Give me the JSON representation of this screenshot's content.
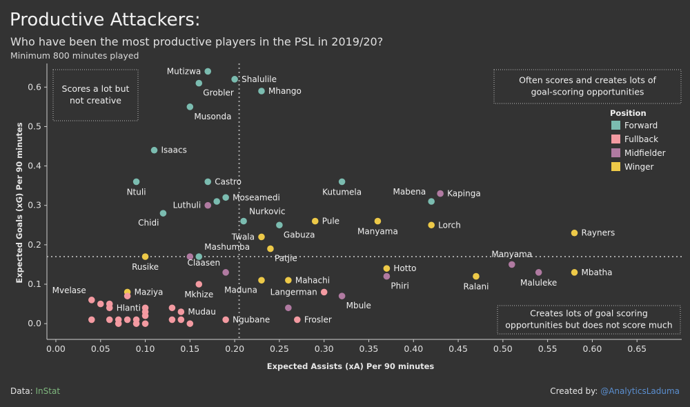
{
  "header": {
    "title": "Productive Attackers:",
    "subtitle": "Who have been the most productive players in the PSL in 2019/20?",
    "note": "Minimum 800 minutes played"
  },
  "footer": {
    "data_prefix": "Data: ",
    "data_source": "InStat",
    "credit_prefix": "Created by: ",
    "credit_handle": "@AnalyticsLaduma"
  },
  "chart_data": {
    "type": "scatter",
    "xlabel": "Expected Assists (xA) Per 90 minutes",
    "ylabel": "Expected Goals (xG) Per 90 minutes",
    "xlim": [
      -0.01,
      0.7
    ],
    "ylim": [
      -0.04,
      0.66
    ],
    "xticks": [
      0.0,
      0.05,
      0.1,
      0.15,
      0.2,
      0.25,
      0.3,
      0.35,
      0.4,
      0.45,
      0.5,
      0.55,
      0.6,
      0.65
    ],
    "yticks": [
      0.0,
      0.1,
      0.2,
      0.3,
      0.4,
      0.5,
      0.6
    ],
    "xtick_labels": [
      "0.00",
      "0.05",
      "0.10",
      "0.15",
      "0.20",
      "0.25",
      "0.30",
      "0.35",
      "0.40",
      "0.45",
      "0.50",
      "0.55",
      "0.60",
      "0.65"
    ],
    "ytick_labels": [
      "0.0",
      "0.1",
      "0.2",
      "0.3",
      "0.4",
      "0.5",
      "0.6"
    ],
    "reference_lines": {
      "x": 0.205,
      "y": 0.17
    },
    "legend": {
      "title": "Position",
      "placement": "top-right",
      "entries": [
        {
          "name": "Forward",
          "color": "#7bbcb0"
        },
        {
          "name": "Fullback",
          "color": "#f39aa1"
        },
        {
          "name": "Midfielder",
          "color": "#b07aa1"
        },
        {
          "name": "Winger",
          "color": "#edc948"
        }
      ]
    },
    "annotations": [
      {
        "lines": [
          "Scores a lot but",
          "not creative"
        ],
        "placement": "top-left"
      },
      {
        "lines": [
          "Often scores and creates lots of",
          "goal-scoring opportunities"
        ],
        "placement": "top-right"
      },
      {
        "lines": [
          "Creates lots of goal scoring",
          "opportunities but does not score much"
        ],
        "placement": "bottom-right"
      }
    ],
    "points": [
      {
        "name": "Mutizwa",
        "x": 0.17,
        "y": 0.64,
        "pos": "Forward",
        "label": "l"
      },
      {
        "name": "Shalulile",
        "x": 0.2,
        "y": 0.62,
        "pos": "Forward",
        "label": "r"
      },
      {
        "name": "Grobler",
        "x": 0.16,
        "y": 0.61,
        "pos": "Forward",
        "label": "br"
      },
      {
        "name": "Mhango",
        "x": 0.23,
        "y": 0.59,
        "pos": "Forward",
        "label": "r"
      },
      {
        "name": "Musonda",
        "x": 0.15,
        "y": 0.55,
        "pos": "Forward",
        "label": "br"
      },
      {
        "name": "Isaacs",
        "x": 0.11,
        "y": 0.44,
        "pos": "Forward",
        "label": "r"
      },
      {
        "name": "Ntuli",
        "x": 0.09,
        "y": 0.36,
        "pos": "Forward",
        "label": "b"
      },
      {
        "name": "Castro",
        "x": 0.17,
        "y": 0.36,
        "pos": "Forward",
        "label": "r"
      },
      {
        "name": "Kutumela",
        "x": 0.32,
        "y": 0.36,
        "pos": "Forward",
        "label": "b"
      },
      {
        "name": "Moseamedi",
        "x": 0.19,
        "y": 0.32,
        "pos": "Forward",
        "label": "r"
      },
      {
        "name": "",
        "x": 0.18,
        "y": 0.31,
        "pos": "Forward",
        "label": ""
      },
      {
        "name": "Luthuli",
        "x": 0.17,
        "y": 0.3,
        "pos": "Midfielder",
        "label": "l"
      },
      {
        "name": "Mabena",
        "x": 0.42,
        "y": 0.31,
        "pos": "Forward",
        "label": "tl"
      },
      {
        "name": "Kapinga",
        "x": 0.43,
        "y": 0.33,
        "pos": "Midfielder",
        "label": "r"
      },
      {
        "name": "Chidi",
        "x": 0.12,
        "y": 0.28,
        "pos": "Forward",
        "label": "bl"
      },
      {
        "name": "Nurkovic",
        "x": 0.21,
        "y": 0.26,
        "pos": "Forward",
        "label": "tr"
      },
      {
        "name": "Gabuza",
        "x": 0.25,
        "y": 0.25,
        "pos": "Forward",
        "label": "br"
      },
      {
        "name": "Pule",
        "x": 0.29,
        "y": 0.26,
        "pos": "Winger",
        "label": "r"
      },
      {
        "name": "Manyama",
        "x": 0.36,
        "y": 0.26,
        "pos": "Winger",
        "label": "b"
      },
      {
        "name": "Lorch",
        "x": 0.42,
        "y": 0.25,
        "pos": "Winger",
        "label": "r"
      },
      {
        "name": "Rayners",
        "x": 0.58,
        "y": 0.23,
        "pos": "Winger",
        "label": "r"
      },
      {
        "name": "Twala",
        "x": 0.23,
        "y": 0.22,
        "pos": "Winger",
        "label": "l"
      },
      {
        "name": "Patjie",
        "x": 0.24,
        "y": 0.19,
        "pos": "Winger",
        "label": "br"
      },
      {
        "name": "Mashumba",
        "x": 0.16,
        "y": 0.17,
        "pos": "Forward",
        "label": "tr"
      },
      {
        "name": "",
        "x": 0.15,
        "y": 0.17,
        "pos": "Midfielder",
        "label": ""
      },
      {
        "name": "Rusike",
        "x": 0.1,
        "y": 0.17,
        "pos": "Winger",
        "label": "b"
      },
      {
        "name": "Claasen",
        "x": 0.19,
        "y": 0.13,
        "pos": "Midfielder",
        "label": "tl"
      },
      {
        "name": "Manyama",
        "x": 0.51,
        "y": 0.15,
        "pos": "Midfielder",
        "label": "t"
      },
      {
        "name": "Maluleke",
        "x": 0.54,
        "y": 0.13,
        "pos": "Midfielder",
        "label": "b"
      },
      {
        "name": "Mbatha",
        "x": 0.58,
        "y": 0.13,
        "pos": "Winger",
        "label": "r"
      },
      {
        "name": "Hotto",
        "x": 0.37,
        "y": 0.14,
        "pos": "Winger",
        "label": "r"
      },
      {
        "name": "Phiri",
        "x": 0.37,
        "y": 0.12,
        "pos": "Midfielder",
        "label": "br"
      },
      {
        "name": "Ralani",
        "x": 0.47,
        "y": 0.12,
        "pos": "Winger",
        "label": "b"
      },
      {
        "name": "Mahachi",
        "x": 0.26,
        "y": 0.11,
        "pos": "Winger",
        "label": "r"
      },
      {
        "name": "Maduna",
        "x": 0.23,
        "y": 0.11,
        "pos": "Winger",
        "label": "bl"
      },
      {
        "name": "Mkhize",
        "x": 0.16,
        "y": 0.1,
        "pos": "Fullback",
        "label": "b"
      },
      {
        "name": "Langerman",
        "x": 0.3,
        "y": 0.08,
        "pos": "Fullback",
        "label": "l"
      },
      {
        "name": "Mbule",
        "x": 0.32,
        "y": 0.07,
        "pos": "Midfielder",
        "label": "br"
      },
      {
        "name": "Maziya",
        "x": 0.08,
        "y": 0.08,
        "pos": "Winger",
        "label": "r"
      },
      {
        "name": "",
        "x": 0.08,
        "y": 0.07,
        "pos": "Fullback",
        "label": ""
      },
      {
        "name": "Mvelase",
        "x": 0.04,
        "y": 0.06,
        "pos": "Fullback",
        "label": "tl"
      },
      {
        "name": "",
        "x": 0.05,
        "y": 0.05,
        "pos": "Fullback",
        "label": ""
      },
      {
        "name": "",
        "x": 0.06,
        "y": 0.05,
        "pos": "Fullback",
        "label": ""
      },
      {
        "name": "Hlanti",
        "x": 0.06,
        "y": 0.04,
        "pos": "Fullback",
        "label": "r"
      },
      {
        "name": "",
        "x": 0.1,
        "y": 0.04,
        "pos": "Fullback",
        "label": ""
      },
      {
        "name": "",
        "x": 0.13,
        "y": 0.04,
        "pos": "Fullback",
        "label": ""
      },
      {
        "name": "Mudau",
        "x": 0.14,
        "y": 0.03,
        "pos": "Fullback",
        "label": "r"
      },
      {
        "name": "",
        "x": 0.1,
        "y": 0.03,
        "pos": "Fullback",
        "label": ""
      },
      {
        "name": "",
        "x": 0.26,
        "y": 0.04,
        "pos": "Midfielder",
        "label": ""
      },
      {
        "name": "",
        "x": 0.04,
        "y": 0.01,
        "pos": "Fullback",
        "label": ""
      },
      {
        "name": "",
        "x": 0.06,
        "y": 0.01,
        "pos": "Fullback",
        "label": ""
      },
      {
        "name": "",
        "x": 0.07,
        "y": 0.01,
        "pos": "Fullback",
        "label": ""
      },
      {
        "name": "",
        "x": 0.07,
        "y": 0.0,
        "pos": "Fullback",
        "label": ""
      },
      {
        "name": "",
        "x": 0.08,
        "y": 0.01,
        "pos": "Fullback",
        "label": ""
      },
      {
        "name": "",
        "x": 0.09,
        "y": 0.01,
        "pos": "Fullback",
        "label": ""
      },
      {
        "name": "",
        "x": 0.09,
        "y": 0.0,
        "pos": "Fullback",
        "label": ""
      },
      {
        "name": "",
        "x": 0.1,
        "y": 0.02,
        "pos": "Fullback",
        "label": ""
      },
      {
        "name": "",
        "x": 0.1,
        "y": 0.0,
        "pos": "Fullback",
        "label": ""
      },
      {
        "name": "",
        "x": 0.13,
        "y": 0.01,
        "pos": "Fullback",
        "label": ""
      },
      {
        "name": "",
        "x": 0.14,
        "y": 0.01,
        "pos": "Fullback",
        "label": ""
      },
      {
        "name": "",
        "x": 0.15,
        "y": 0.0,
        "pos": "Fullback",
        "label": ""
      },
      {
        "name": "Ngubane",
        "x": 0.19,
        "y": 0.01,
        "pos": "Fullback",
        "label": "r"
      },
      {
        "name": "Frosler",
        "x": 0.27,
        "y": 0.01,
        "pos": "Fullback",
        "label": "r"
      }
    ]
  }
}
